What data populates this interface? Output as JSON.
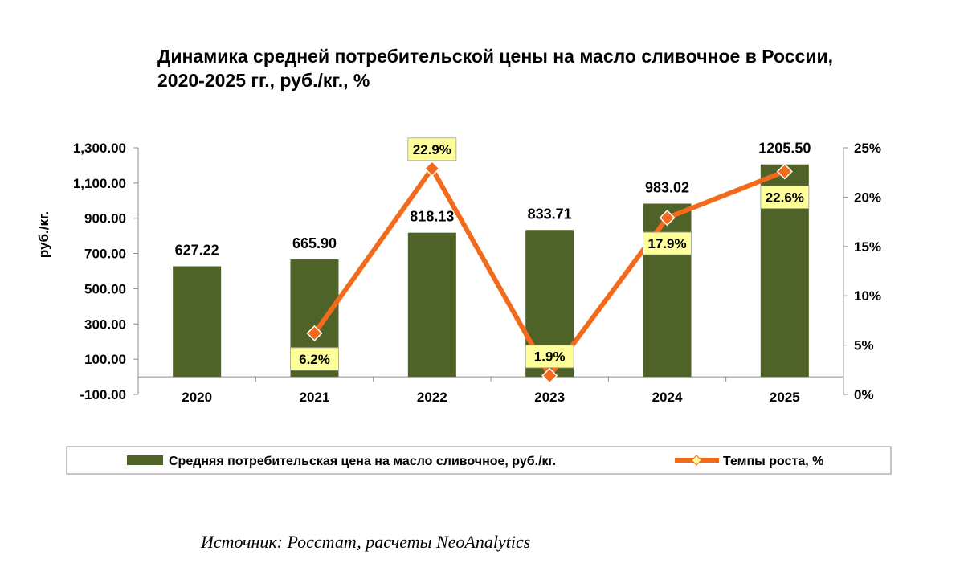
{
  "title": {
    "line1": "Динамика средней потребительской цены на масло сливочное в России,",
    "line2": "2020-2025 гг., руб./кг., %"
  },
  "chart_data": {
    "type": "bar",
    "categories": [
      "2020",
      "2021",
      "2022",
      "2023",
      "2024",
      "2025"
    ],
    "series": [
      {
        "name": "Средняя потребительская цена на масло сливочное, руб./кг.",
        "kind": "bar",
        "axis": "left",
        "values": [
          627.22,
          665.9,
          818.13,
          833.71,
          983.02,
          1205.5
        ],
        "labels": [
          "627.22",
          "665.90",
          "818.13",
          "833.71",
          "983.02",
          "1205.50"
        ],
        "color": "#4F6228"
      },
      {
        "name": "Темпы роста, %",
        "kind": "line",
        "axis": "right",
        "points": [
          {
            "category": "2021",
            "value": 6.2,
            "label": "6.2%",
            "label_pos": "below"
          },
          {
            "category": "2022",
            "value": 22.9,
            "label": "22.9%",
            "label_pos": "above"
          },
          {
            "category": "2023",
            "value": 1.9,
            "label": "1.9%",
            "label_pos": "above"
          },
          {
            "category": "2024",
            "value": 17.9,
            "label": "17.9%",
            "label_pos": "below"
          },
          {
            "category": "2025",
            "value": 22.6,
            "label": "22.6%",
            "label_pos": "below"
          }
        ],
        "color": "#F26A1B",
        "marker_color": "#F26A1B"
      }
    ],
    "y_left": {
      "label": "руб./кг.",
      "ylim": [
        -100,
        1300
      ],
      "ticks": [
        -100,
        100,
        300,
        500,
        700,
        900,
        1100,
        1300
      ],
      "tick_labels": [
        "-100.00",
        "100.00",
        "300.00",
        "500.00",
        "700.00",
        "900.00",
        "1,100.00",
        "1,300.00"
      ]
    },
    "y_right": {
      "ylim": [
        0,
        25
      ],
      "ticks": [
        0,
        5,
        10,
        15,
        20,
        25
      ],
      "tick_labels": [
        "0%",
        "5%",
        "10%",
        "15%",
        "20%",
        "25%"
      ]
    },
    "legend": {
      "position": "bottom",
      "items": [
        {
          "label": "Средняя потребительская цена на масло сливочное, руб./кг.",
          "type": "bar",
          "color": "#4F6228"
        },
        {
          "label": "Темпы роста, %",
          "type": "line",
          "color": "#F26A1B"
        }
      ]
    },
    "label_box_color": "#FFFF99",
    "grid": false
  },
  "source": "Источник: Росстат, расчеты NeoAnalytics"
}
